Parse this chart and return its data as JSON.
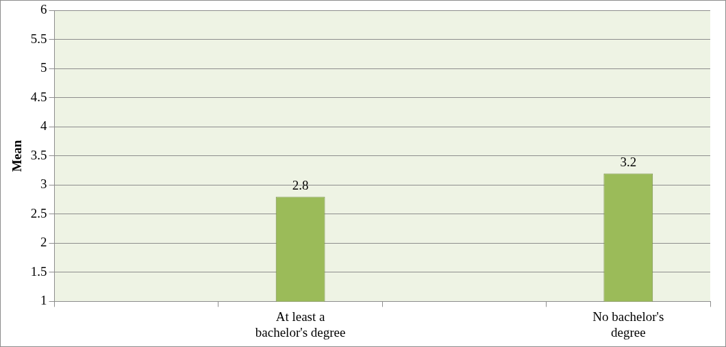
{
  "chart_data": {
    "type": "bar",
    "ylabel": "Mean",
    "categories": [
      null,
      "At least a bachelor's degree",
      null,
      "No bachelor's degree"
    ],
    "values": [
      null,
      2.8,
      null,
      3.2
    ],
    "color": "#9bbb59",
    "ylim": [
      1,
      6
    ],
    "yticks": [
      1,
      1.5,
      2,
      2.5,
      3,
      3.5,
      4,
      4.5,
      5,
      5.5,
      6
    ],
    "grid": "y",
    "data_labels": true
  }
}
